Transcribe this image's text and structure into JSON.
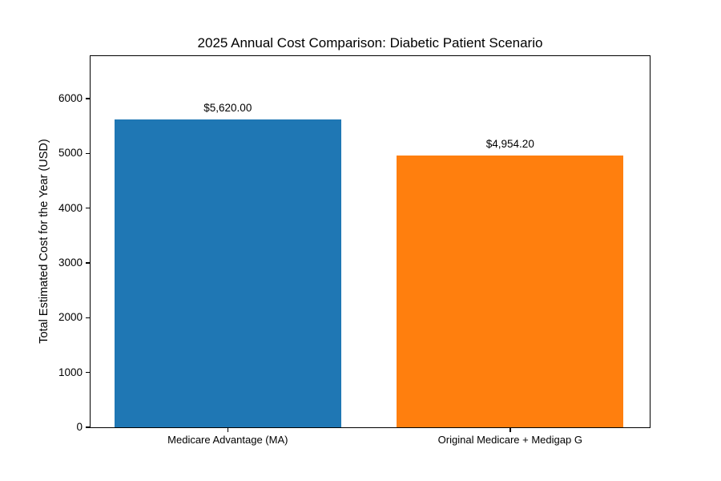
{
  "window": {
    "background": "#ffffff"
  },
  "chart_data": {
    "type": "bar",
    "title": "2025 Annual Cost Comparison: Diabetic Patient Scenario",
    "xlabel": "",
    "ylabel": "Total Estimated Cost for the Year (USD)",
    "categories": [
      "Medicare Advantage (MA)",
      "Original Medicare + Medigap G"
    ],
    "values": [
      5620.0,
      4954.2
    ],
    "bar_value_labels": [
      "$5,620.00",
      "$4,954.20"
    ],
    "bar_colors": [
      "#1f77b4",
      "#ff7f0e"
    ],
    "yticks": [
      0,
      1000,
      2000,
      3000,
      4000,
      5000,
      6000
    ],
    "ylim": [
      0,
      6776
    ],
    "grid": false,
    "legend_position": "none",
    "text_color": "#000000",
    "spine_color": "#000000"
  }
}
